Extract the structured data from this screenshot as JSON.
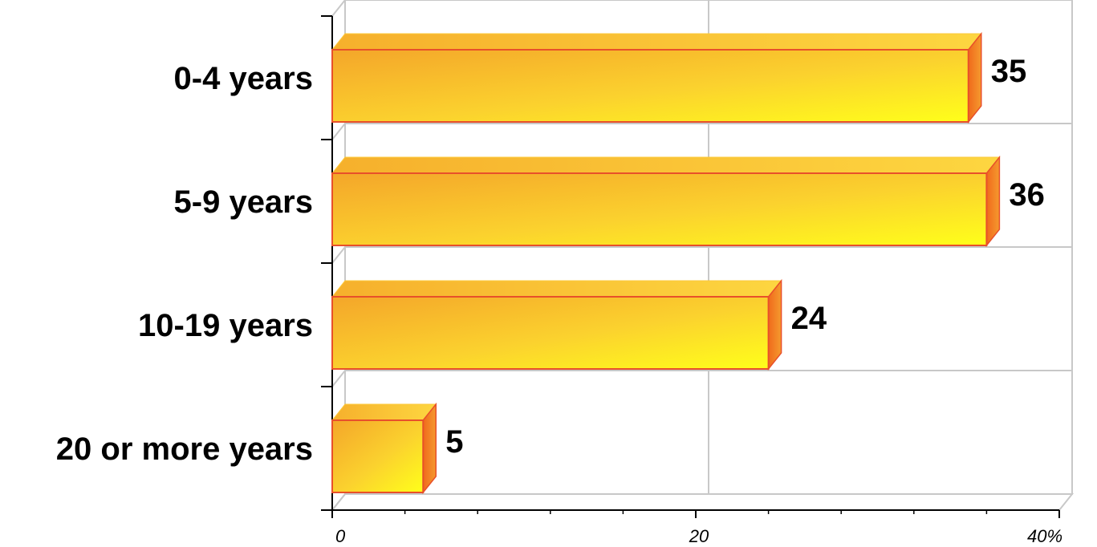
{
  "chart_data": {
    "type": "bar",
    "orientation": "horizontal",
    "categories": [
      "0-4 years",
      "5-9 years",
      "10-19 years",
      "20 or more years"
    ],
    "values": [
      35,
      36,
      24,
      5
    ],
    "value_labels": [
      "35",
      "36",
      "24",
      "5"
    ],
    "x_ticks": [
      "0",
      "20",
      "40%"
    ],
    "xlim": [
      0,
      40
    ],
    "grid": true,
    "title": "",
    "xlabel": "",
    "ylabel": "",
    "colors": {
      "bar_light": "#ffff33",
      "bar_dark": "#f5a623",
      "bar_edge": "#e8502a",
      "side_face": "#f07a1e",
      "top_face": "#fcc93a",
      "grid": "#c8c8c8",
      "axis": "#000000"
    }
  }
}
